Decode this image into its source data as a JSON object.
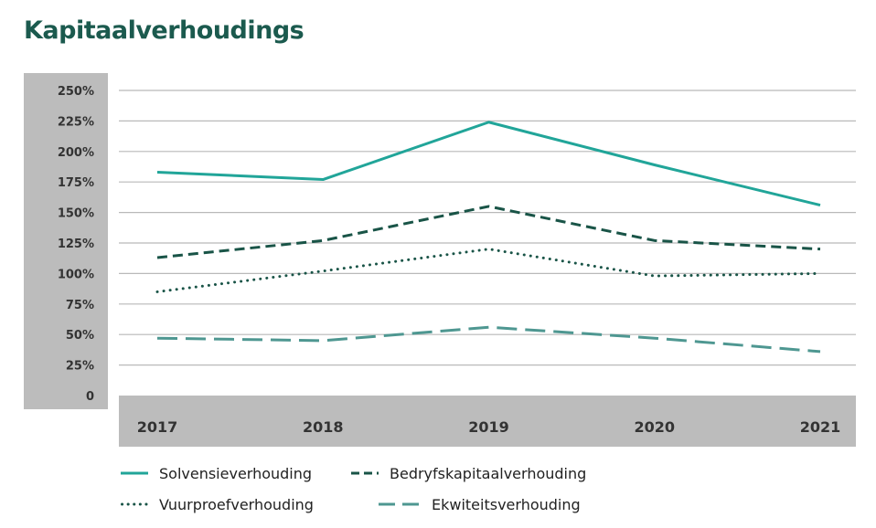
{
  "title": "Kapitaalverhoudings",
  "chart_data": {
    "type": "line",
    "categories": [
      "2017",
      "2018",
      "2019",
      "2020",
      "2021"
    ],
    "y_ticks": [
      "0",
      "25%",
      "50%",
      "75%",
      "100%",
      "125%",
      "150%",
      "175%",
      "200%",
      "225%",
      "250%"
    ],
    "ylim": [
      0,
      250
    ],
    "grid": true,
    "legend_position": "bottom",
    "series": [
      {
        "name": "Solvensieverhouding",
        "values": [
          183,
          177,
          224,
          189,
          156
        ],
        "color": "#21a599",
        "dash": "solid"
      },
      {
        "name": "Bedryfskapitaalverhouding",
        "values": [
          113,
          127,
          155,
          127,
          120
        ],
        "color": "#195447",
        "dash": "dashed"
      },
      {
        "name": "Vuurproefverhouding",
        "values": [
          85,
          102,
          120,
          98,
          100
        ],
        "color": "#195447",
        "dash": "dotted"
      },
      {
        "name": "Ekwiteitsverhouding",
        "values": [
          47,
          45,
          56,
          47,
          36
        ],
        "color": "#4e9791",
        "dash": "longdash"
      }
    ]
  }
}
